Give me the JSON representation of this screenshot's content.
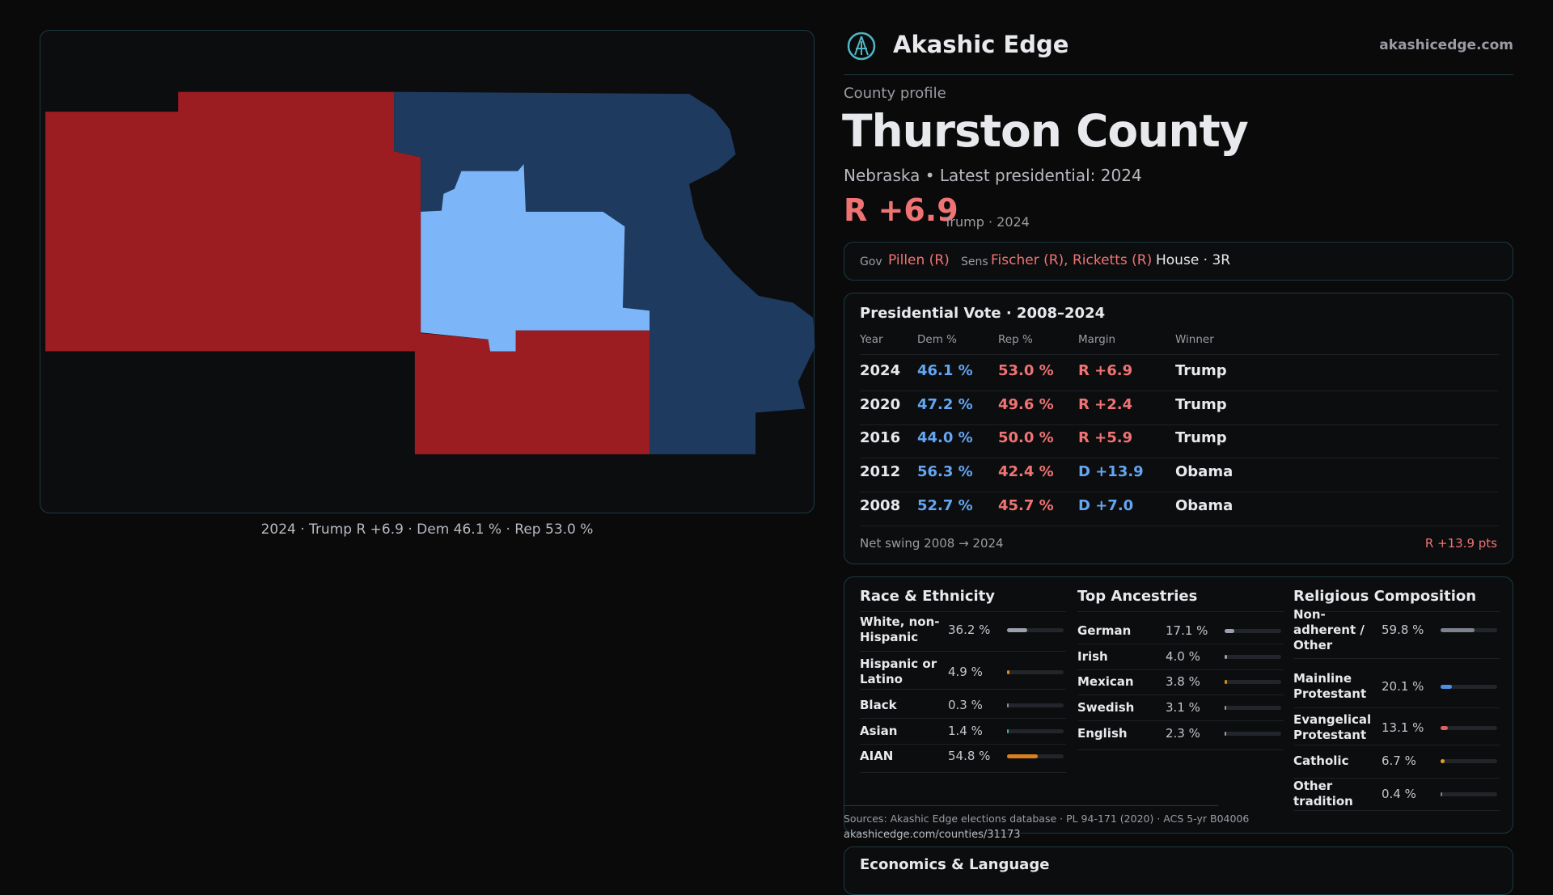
{
  "map_caption": "2024 · Trump R +6.9 · Dem 46.1 % · Rep 53.0 %",
  "header": {
    "brand": "Akashic Edge",
    "site": "akashicedge.com"
  },
  "profile": {
    "kicker": "County profile",
    "title": "Thurston County",
    "subtitle": "Nebraska • Latest presidential: 2024",
    "margin": "R +6.9",
    "margin_note": "Trump · 2024"
  },
  "officials": {
    "gov_label": "Gov",
    "gov": "Pillen (R)",
    "sens_label": "Sens",
    "sens": "Fischer (R), Ricketts (R)",
    "house": "House · 3R"
  },
  "vote_table": {
    "title": "Presidential Vote · 2008–2024",
    "columns": [
      "Year",
      "Dem %",
      "Rep %",
      "Margin",
      "Winner"
    ],
    "rows": [
      [
        "2024",
        "46.1 %",
        "53.0 %",
        "R +6.9",
        "Trump"
      ],
      [
        "2020",
        "47.2 %",
        "49.6 %",
        "R +2.4",
        "Trump"
      ],
      [
        "2016",
        "44.0 %",
        "50.0 %",
        "R +5.9",
        "Trump"
      ],
      [
        "2012",
        "56.3 %",
        "42.4 %",
        "D +13.9",
        "Obama"
      ],
      [
        "2008",
        "52.7 %",
        "45.7 %",
        "D +7.0",
        "Obama"
      ]
    ],
    "swing_label": "Net swing 2008 → 2024",
    "swing": "R +13.9 pts"
  },
  "race": {
    "title": "Race & Ethnicity",
    "rows": [
      {
        "label": "White, non-Hispanic",
        "value": 36.2,
        "value_label": "36.2 %",
        "color": "#9aa0ad"
      },
      {
        "label": "Hispanic or Latino",
        "value": 4.9,
        "value_label": "4.9 %",
        "color": "#e08a1e"
      },
      {
        "label": "Black",
        "value": 0.3,
        "value_label": "0.3 %",
        "color": "#8a8fa0"
      },
      {
        "label": "Asian",
        "value": 1.4,
        "value_label": "1.4 %",
        "color": "#3fb39a"
      },
      {
        "label": "AIAN",
        "value": 54.8,
        "value_label": "54.8 %",
        "color": "#d9801c"
      }
    ]
  },
  "ancestries": {
    "title": "Top Ancestries",
    "rows": [
      {
        "label": "German",
        "value": 17.1,
        "value_label": "17.1 %",
        "color": "#9aa0ad"
      },
      {
        "label": "Irish",
        "value": 4.0,
        "value_label": "4.0 %",
        "color": "#9aa0ad"
      },
      {
        "label": "Mexican",
        "value": 3.8,
        "value_label": "3.8 %",
        "color": "#e08a1e"
      },
      {
        "label": "Swedish",
        "value": 3.1,
        "value_label": "3.1 %",
        "color": "#9aa0ad"
      },
      {
        "label": "English",
        "value": 2.3,
        "value_label": "2.3 %",
        "color": "#9aa0ad"
      }
    ]
  },
  "religion": {
    "title": "Religious Composition",
    "rows": [
      {
        "label": "Non-adherent / Other",
        "value": 59.8,
        "value_label": "59.8 %",
        "color": "#7d8290"
      },
      {
        "label": "Mainline Protestant",
        "value": 20.1,
        "value_label": "20.1 %",
        "color": "#4f8fe0"
      },
      {
        "label": "Evangelical Protestant",
        "value": 13.1,
        "value_label": "13.1 %",
        "color": "#e06060"
      },
      {
        "label": "Catholic",
        "value": 6.7,
        "value_label": "6.7 %",
        "color": "#e0a020"
      },
      {
        "label": "Other tradition",
        "value": 0.4,
        "value_label": "0.4 %",
        "color": "#7d8290"
      }
    ]
  },
  "sources": "Sources: Akashic Edge elections database · PL 94-171 (2020) · ACS 5-yr B04006",
  "url": "akashicedge.com/counties/31173",
  "next_section": "Economics & Language"
}
